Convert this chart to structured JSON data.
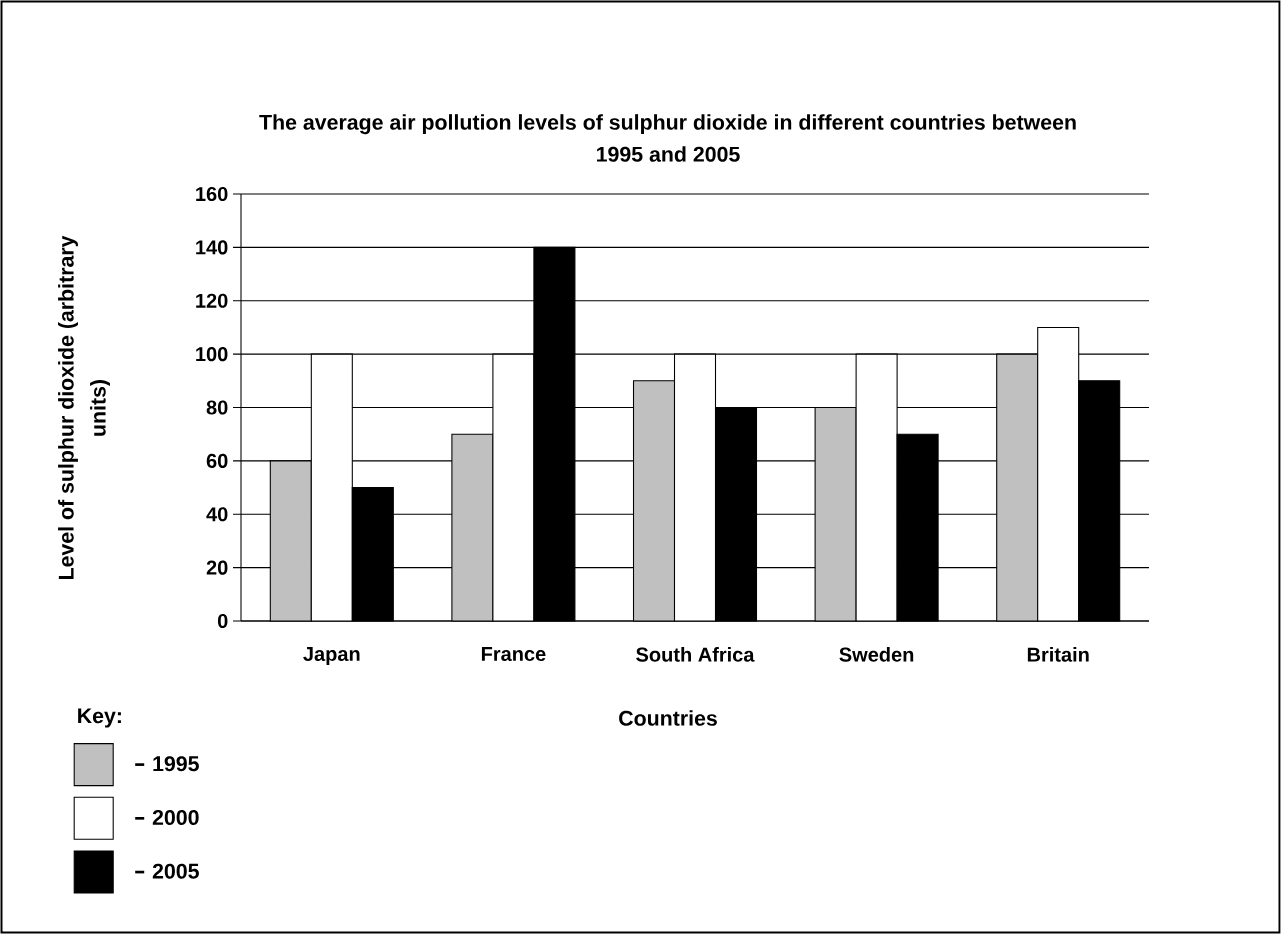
{
  "chart_data": {
    "type": "bar",
    "title": "The average air pollution levels of sulphur dioxide in different countries between 1995 and 2005",
    "xlabel": "Countries",
    "ylabel": "Level of sulphur dioxide (arbitrary units)",
    "legend_title": "Key:",
    "categories": [
      "Japan",
      "France",
      "South Africa",
      "Sweden",
      "Britain"
    ],
    "series": [
      {
        "name": "1995",
        "color": "#c0c0c0",
        "values": [
          60,
          70,
          90,
          80,
          100
        ]
      },
      {
        "name": "2000",
        "color": "#ffffff",
        "values": [
          100,
          100,
          100,
          100,
          110
        ]
      },
      {
        "name": "2005",
        "color": "#000000",
        "values": [
          50,
          140,
          80,
          70,
          90
        ]
      }
    ],
    "ylim": [
      0,
      160
    ],
    "yticks": [
      0,
      20,
      40,
      60,
      80,
      100,
      120,
      140,
      160
    ],
    "grid": "y",
    "legend": "bottom left"
  }
}
